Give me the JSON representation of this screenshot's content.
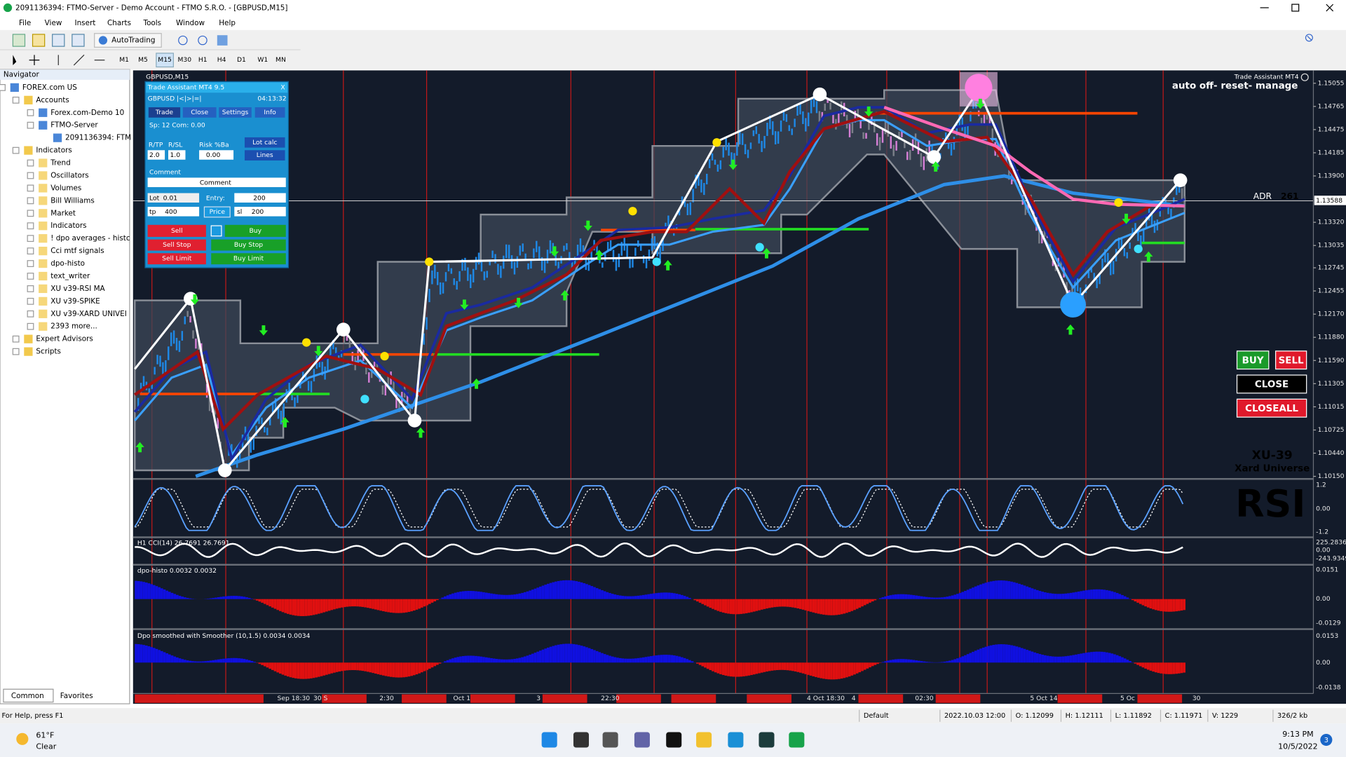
{
  "window": {
    "title": "2091136394: FTMO-Server - Demo Account - FTMO S.R.O. - [GBPUSD,M15]"
  },
  "menu": [
    "File",
    "View",
    "Insert",
    "Charts",
    "Tools",
    "Window",
    "Help"
  ],
  "toolbar": {
    "autotrading": "AutoTrading",
    "timeframes": [
      "M1",
      "M5",
      "M15",
      "M30",
      "H1",
      "H4",
      "D1",
      "W1",
      "MN"
    ]
  },
  "navigator": {
    "title": "Navigator",
    "items": [
      "FOREX.com US",
      "Accounts",
      "Forex.com-Demo 10",
      "FTMO-Server",
      "2091136394: FTM",
      "Indicators",
      "Trend",
      "Oscillators",
      "Volumes",
      "Bill Williams",
      "Market",
      "Indicators",
      "! dpo averages - histc",
      "Cci mtf signals",
      "dpo-histo",
      "text_writer",
      "XU v39-RSI MA",
      "XU v39-SPIKE",
      "XU v39-XARD UNIVEI",
      "2393 more...",
      "Expert Advisors",
      "Scripts"
    ],
    "tabs": [
      "Common",
      "Favorites"
    ]
  },
  "chart": {
    "symbol": "GBPUSD,M15",
    "ea_name": "Trade Assistant MT4",
    "ea_status": "auto off- reset- manage",
    "adr_label": "ADR",
    "adr_value": "261",
    "buttons": {
      "buy": "BUY",
      "sell": "SELL",
      "close": "CLOSE",
      "closeall": "CLOSEALL"
    },
    "brand": {
      "name": "XU-39",
      "sub": "Xard Universe"
    },
    "rsi_label": "RSI",
    "price_axis": [
      "1.15055",
      "1.14765",
      "1.14475",
      "1.14185",
      "1.13900",
      "1.13320",
      "1.13035",
      "1.12745",
      "1.12455",
      "1.12170",
      "1.11880",
      "1.11590",
      "1.11305",
      "1.11015",
      "1.10725",
      "1.10440",
      "1.10150"
    ],
    "current_price": "1.13588",
    "time_axis": [
      "Sep 18:30",
      "30 S",
      "2:30",
      "Oct 1",
      "3",
      "22:30",
      "4 Oct 18:30",
      "4",
      "02:30",
      "5 Oct 14",
      "5 Oc",
      "30"
    ],
    "panes": [
      {
        "label": "",
        "axis": [
          "1.2",
          "0.00",
          "-1.2"
        ]
      },
      {
        "label": "H1 CCI(14) 26.7691 26.7691",
        "axis": [
          "225.2836",
          "0.00",
          "-243.9349"
        ]
      },
      {
        "label": "dpo-histo 0.0032 0.0032",
        "axis": [
          "0.0151",
          "0.00",
          "-0.0129"
        ]
      },
      {
        "label": "Dpo smoothed with Smoother (10,1.5) 0.0034 0.0034",
        "axis": [
          "0.0153",
          "0.00",
          "-0.0138"
        ]
      }
    ]
  },
  "trade_panel": {
    "title": "Trade Assistant MT4 9.5",
    "close_x": "X",
    "symbol_row": "GBPUSD |<|>|=|",
    "timer": "04:13:32",
    "tabs": [
      "Trade",
      "Close",
      "Settings",
      "Info"
    ],
    "spread": "Sp: 12  Com: 0.00",
    "labels": {
      "rtp": "R/TP",
      "rsl": "R/SL",
      "risk": "Risk %Ba",
      "comment": "Comment",
      "lot": "Lot",
      "entry": "Entry:",
      "tp": "tp",
      "sl": "sl"
    },
    "inputs": {
      "rtp": "2.0",
      "rsl": "1.0",
      "risk": "0.00",
      "comment": "Comment",
      "lot": "0.01",
      "entry": "200",
      "tp": "400",
      "sl": "200"
    },
    "buttons": {
      "lotcalc": "Lot calc",
      "lines": "Lines",
      "price": "Price",
      "sell": "Sell",
      "buy": "Buy",
      "sellstop": "Sell Stop",
      "buystop": "Buy Stop",
      "selllimit": "Sell Limit",
      "buylimit": "Buy Limit"
    }
  },
  "status_bar": [
    "For Help, press F1",
    "Default",
    "2022.10.03 12:00",
    "O: 1.12099",
    "H: 1.12111",
    "L: 1.11892",
    "C: 1.11971",
    "V: 1229",
    "326/2 kb"
  ],
  "taskbar": {
    "temp": "61°F",
    "weather": "Clear",
    "time": "9:13 PM",
    "date": "10/5/2022",
    "badge": "3"
  }
}
